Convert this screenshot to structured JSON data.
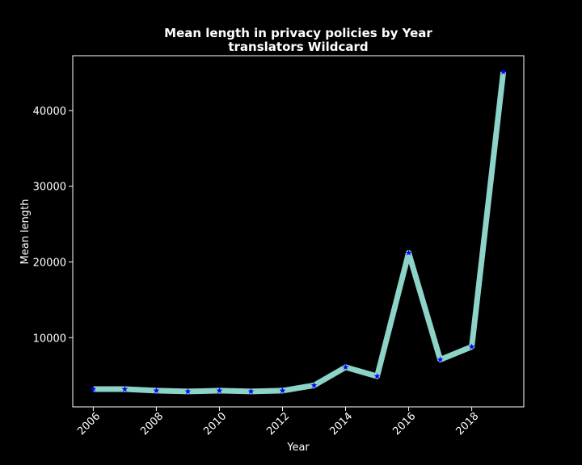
{
  "chart_data": {
    "type": "line",
    "title_line1": "Mean length in privacy policies by Year",
    "title_line2": "translators Wildcard",
    "xlabel": "Year",
    "ylabel": "Mean length",
    "x": [
      2006,
      2007,
      2008,
      2009,
      2010,
      2011,
      2012,
      2013,
      2014,
      2015,
      2016,
      2017,
      2018,
      2019
    ],
    "series": [
      {
        "values": [
          3200,
          3200,
          3000,
          2900,
          3000,
          2900,
          3000,
          3700,
          6100,
          4900,
          21200,
          7100,
          8800,
          45100
        ]
      }
    ],
    "xlim": [
      2005.35,
      2019.65
    ],
    "ylim": [
      860,
      47240
    ],
    "xticks": [
      2006,
      2008,
      2010,
      2012,
      2014,
      2016,
      2018
    ],
    "yticks": [
      10000,
      20000,
      30000,
      40000
    ],
    "grid": false,
    "legend": "none",
    "line_color": "#8dd3c7",
    "marker_color": "#0000ff",
    "background": "#000000",
    "axes_color": "#ffffff",
    "text_color": "#ffffff"
  }
}
